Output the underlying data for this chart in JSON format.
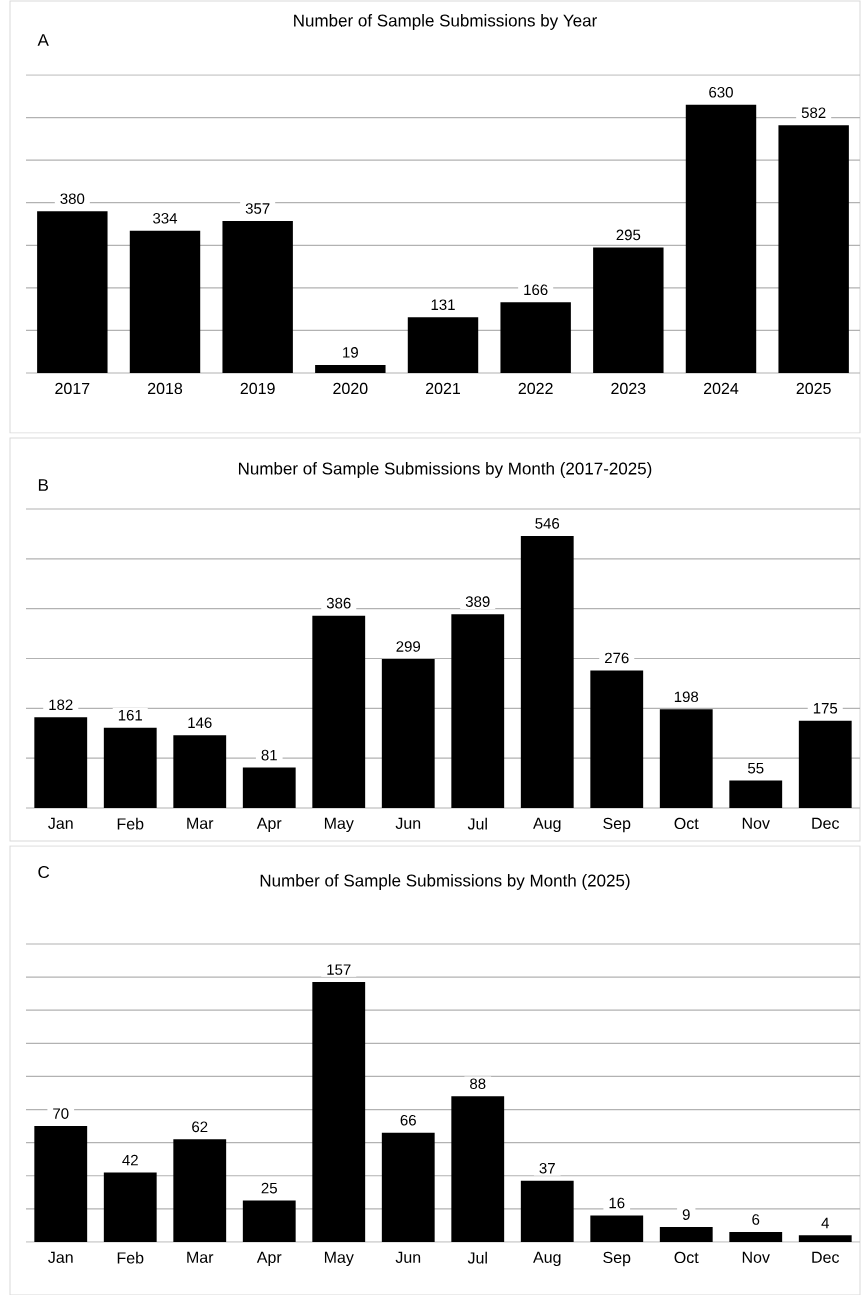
{
  "chart_data": [
    {
      "type": "bar",
      "title": "Number of Sample Submissions by Year",
      "annotations": [
        "A"
      ],
      "categories": [
        "2017",
        "2018",
        "2019",
        "2020",
        "2021",
        "2022",
        "2023",
        "2024",
        "2025"
      ],
      "values": [
        380,
        334,
        357,
        19,
        131,
        166,
        295,
        630,
        582
      ],
      "color": "#000000",
      "ylim": [
        0,
        700
      ],
      "yticks": [
        {
          "value": 0,
          "label": null
        },
        {
          "value": 100,
          "label": null
        },
        {
          "value": 200,
          "label": null
        },
        {
          "value": 300,
          "label": null
        },
        {
          "value": 400,
          "label": null
        },
        {
          "value": 500,
          "label": null
        },
        {
          "value": 600,
          "label": null
        },
        {
          "value": 700,
          "label": null
        }
      ],
      "grid": "y",
      "tick_labels": "x",
      "data_labels": true
    },
    {
      "type": "bar",
      "title": "Number of Sample Submissions by Month (2017-2025)",
      "annotations": [
        "B"
      ],
      "categories": [
        "Jan",
        "Feb",
        "Mar",
        "Apr",
        "May",
        "Jun",
        "Jul",
        "Aug",
        "Sep",
        "Oct",
        "Nov",
        "Dec"
      ],
      "values": [
        182,
        161,
        146,
        81,
        386,
        299,
        389,
        546,
        276,
        198,
        55,
        175
      ],
      "color": "#000000",
      "ylim": [
        0,
        600
      ],
      "yticks": [
        {
          "value": 0,
          "label": null
        },
        {
          "value": 100,
          "label": null
        },
        {
          "value": 200,
          "label": null
        },
        {
          "value": 300,
          "label": null
        },
        {
          "value": 400,
          "label": null
        },
        {
          "value": 500,
          "label": null
        },
        {
          "value": 600,
          "label": null
        }
      ],
      "grid": "y",
      "tick_labels": "x",
      "data_labels": true
    },
    {
      "type": "bar",
      "title": "Number of Sample Submissions by Month (2025)",
      "annotations": [
        "C"
      ],
      "categories": [
        "Jan",
        "Feb",
        "Mar",
        "Apr",
        "May",
        "Jun",
        "Jul",
        "Aug",
        "Sep",
        "Oct",
        "Nov",
        "Dec"
      ],
      "values": [
        70,
        42,
        62,
        25,
        157,
        66,
        88,
        37,
        16,
        9,
        6,
        4
      ],
      "color": "#000000",
      "ylim": [
        0,
        180
      ],
      "yticks": [
        {
          "value": 0,
          "label": null
        },
        {
          "value": 20,
          "label": null
        },
        {
          "value": 40,
          "label": null
        },
        {
          "value": 60,
          "label": null
        },
        {
          "value": 80,
          "label": null
        },
        {
          "value": 100,
          "label": null
        },
        {
          "value": 120,
          "label": null
        },
        {
          "value": 140,
          "label": null
        },
        {
          "value": 160,
          "label": null
        },
        {
          "value": 180,
          "label": null
        }
      ],
      "grid": "y",
      "tick_labels": "x",
      "data_labels": true
    }
  ]
}
